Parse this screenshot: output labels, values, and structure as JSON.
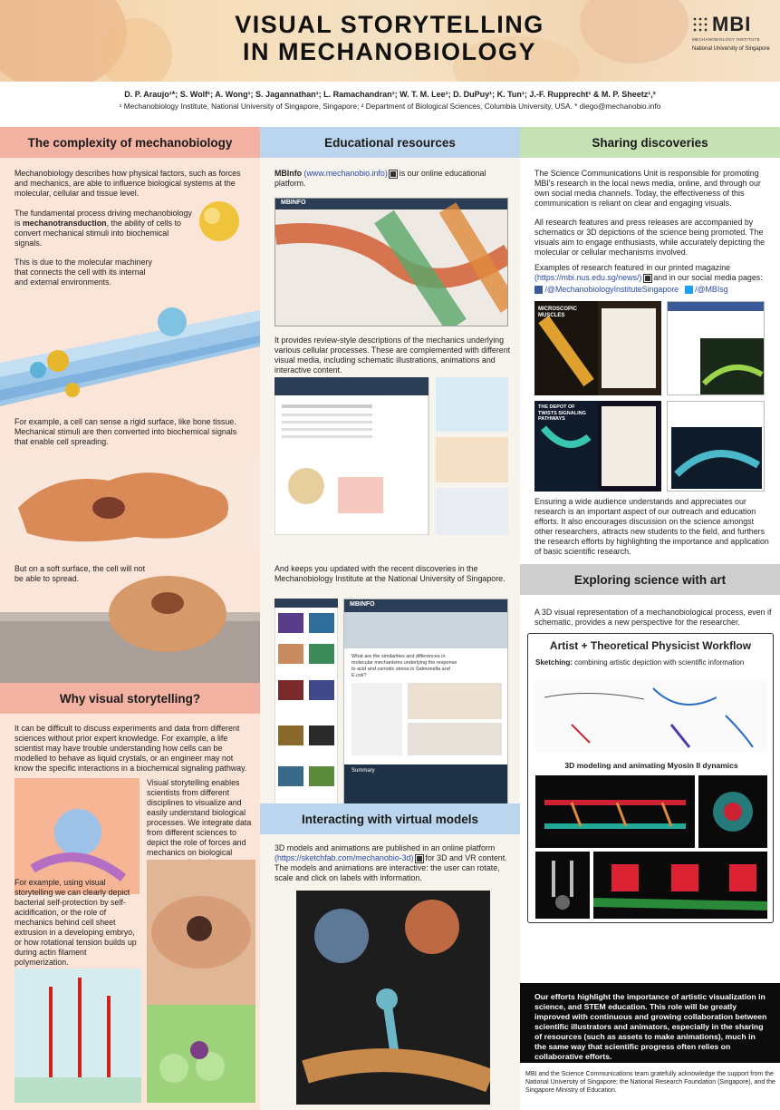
{
  "header": {
    "title_line1": "VISUAL STORYTELLING",
    "title_line2": "IN MECHANOBIOLOGY",
    "logo_text": "MBI",
    "logo_sub": "MECHANOBIOLOGY INSTITUTE",
    "logo_nus": "National University of Singapore"
  },
  "authors": {
    "line1": "D. P. Araujo¹*; S. Wolf¹; A. Wong¹; S. Jagannathan¹; L. Ramachandran¹; W. T. M. Lee¹; D. DuPuy¹; K. Tun¹; J.-F. Rupprecht¹ & M. P. Sheetz¹,²",
    "line2": "¹ Mechanobiology Institute, National University of Singapore, Singapore; ² Department of Biological Sciences, Columbia University, USA. * diego@mechanobio.info"
  },
  "col1": {
    "head1": "The complexity of mechanobiology",
    "p1": "Mechanobiology describes how physical factors, such as forces and mechanics, are able to influence biological systems at the molecular, cellular and tissue level.",
    "p2_pre": "The fundamental process driving mechanobiology is ",
    "p2_bold": "mechanotransduction",
    "p2_post": ", the ability of cells to convert mechanical stimuli into biochemical signals.",
    "p3": "This is due to the molecular machinery that connects the cell with its internal and external environments.",
    "p4": "For example, a cell can sense a rigid surface, like bone tissue. Mechanical stimuli are then converted into biochemical signals that enable cell spreading.",
    "p5": "But on a soft surface, the cell will not be able to spread.",
    "head2": "Why visual storytelling?",
    "p6": "It can be difficult to discuss experiments and data from different sciences without prior expert knowledge. For example, a life scientist may have trouble understanding how cells can be modelled to behave as liquid crystals, or an engineer may not know the specific interactions in a biochemical signaling pathway.",
    "p7": "Visual storytelling enables scientists from different disciplines to visualize and easily understand biological processes. We integrate data from different sciences to depict the role of forces and mechanics on biological processes, from the nanoscale up to level of a whole organism.",
    "p8": "For example, using visual storytelling we can clearly depict bacterial self-protection by self-acidification, or the role of mechanics behind cell sheet extrusion in a developing embryo, or how rotational tension builds up during actin filament polymerization."
  },
  "col2": {
    "head1": "Educational resources",
    "p1_bold": "MBInfo",
    "p1_link": "(www.mechanobio.info)",
    "p1_post": " is our online educational platform.",
    "p2": "It provides review-style descriptions of the mechanics underlying various cellular processes. These are complemented with different visual media, including schematic illustrations, animations and interactive content.",
    "p3": "And keeps you updated with the recent discoveries in the Mechanobiology Institute at the National University of Singapore.",
    "site_logo": "MBINFO",
    "site_q": "What are the similarities and differences in molecular mechanisms underlying the response to acid and osmotic stress in Salmonella and E.coli?",
    "site_sum": "Summary",
    "head2": "Interacting with virtual models",
    "p4_pre": "3D models and animations are published in an online platform ",
    "p4_link": "(https://sketchfab.com/mechanobio-3d)",
    "p4_post": " for 3D and VR content. The models and animations are interactive: the user can rotate, scale and click on labels with information."
  },
  "col3": {
    "head1": "Sharing discoveries",
    "p1": "The Science Communications Unit is responsible for promoting MBI's research in the local news media, online, and through our own social media channels. Today, the effectiveness of this communication is reliant on clear and engaging visuals.",
    "p2": "All research features and press releases are accompanied by schematics or 3D depictions of the science being promoted. The visuals aim to engage enthusiasts, while accurately depicting the molecular or cellular mechanisms involved.",
    "p3_pre": "Examples of research featured in our printed magazine ",
    "p3_link": "(https://mbi.nus.edu.sg/news/)",
    "p3_post": " and in our social media pages:",
    "fb": "/@MechanobiologyInstituteSingapore",
    "tw": "/@MBIsg",
    "mag1": "MICROSCOPIC MUSCLES",
    "mag2": "THE DEPOT OF TWISTS SIGNALING PATHWAYS",
    "p4": "Ensuring a wide audience understands and appreciates our research is an important aspect of our outreach and education efforts. It also encourages discussion on the science amongst other researchers, attracts new students to the field, and furthers the research efforts by highlighting the importance and application of basic scientific research.",
    "head2": "Exploring science with art",
    "p5": "A 3D visual representation of a mechanobiological process, even if schematic, provides a new perspective for the researcher.",
    "wf_title": "Artist + Theoretical Physicist Workflow",
    "wf_sketch_bold": "Sketching:",
    "wf_sketch": " combining artistic depiction with scientific information",
    "wf_model": "3D modeling and animating Myosin II dynamics",
    "p6": "Our efforts highlight the importance of artistic visualization in science, and STEM education. This role will be greatly improved with continuous and growing collaboration between scientific illustrators and animators, especially in the sharing of resources (such as assets to make animations), much in the same way that scientific progress often relies on collaborative efforts.",
    "ack": "MBI and the Science Communications team gratefully acknowledge the support from the National University of Singapore; the National Research Foundation (Singapore), and the Singapore Ministry of Education."
  },
  "colors": {
    "head1_bg": "#f4b3a2",
    "head2_bg": "#bcd5ee",
    "head3_bg": "#c6e2b5",
    "head4_bg": "#cfcfcf",
    "dark_box": "#0b0b0b"
  }
}
